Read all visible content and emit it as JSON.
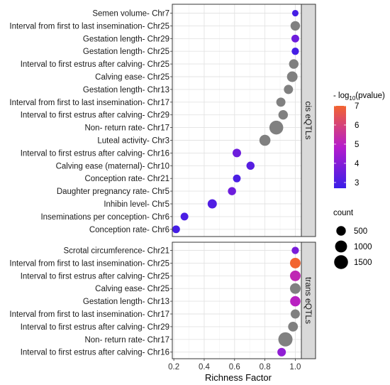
{
  "chart_data": {
    "type": "scatter",
    "xlabel": "Richness Factor",
    "xticks": [
      0.2,
      0.4,
      0.6,
      0.8,
      1.0
    ],
    "xlim": [
      0.19,
      1.04
    ],
    "grid": true,
    "panels": [
      {
        "strip": "cis eQTLs",
        "points": [
          {
            "label": "Semen volume- Chr7",
            "x": 1.0,
            "count": 120,
            "pvalue": 2.9
          },
          {
            "label": "Interval from first to last insemination- Chr25",
            "x": 1.0,
            "count": 500,
            "pvalue": null
          },
          {
            "label": "Gestation length- Chr29",
            "x": 1.0,
            "count": 250,
            "pvalue": 3.6
          },
          {
            "label": "Gestation length- Chr25",
            "x": 1.0,
            "count": 200,
            "pvalue": 2.9
          },
          {
            "label": "Interval to first estrus after calving- Chr25",
            "x": 0.99,
            "count": 500,
            "pvalue": null
          },
          {
            "label": "Calving ease- Chr25",
            "x": 0.98,
            "count": 700,
            "pvalue": null
          },
          {
            "label": "Gestation length- Chr13",
            "x": 0.955,
            "count": 450,
            "pvalue": null
          },
          {
            "label": "Interval from first to last insemination- Chr17",
            "x": 0.905,
            "count": 450,
            "pvalue": null
          },
          {
            "label": "Interval to first estrus after calving- Chr29",
            "x": 0.92,
            "count": 500,
            "pvalue": null
          },
          {
            "label": "Non- return rate- Chr17",
            "x": 0.875,
            "count": 1500,
            "pvalue": null
          },
          {
            "label": "Luteal activity- Chr3",
            "x": 0.8,
            "count": 800,
            "pvalue": null
          },
          {
            "label": "Interval to first estrus after calving- Chr16",
            "x": 0.615,
            "count": 350,
            "pvalue": 3.6
          },
          {
            "label": "Calving ease (maternal)- Chr10",
            "x": 0.705,
            "count": 300,
            "pvalue": 3.2
          },
          {
            "label": "Conception rate- Chr21",
            "x": 0.615,
            "count": 250,
            "pvalue": 3.0
          },
          {
            "label": "Daughter pregnancy rate- Chr5",
            "x": 0.583,
            "count": 300,
            "pvalue": 3.6
          },
          {
            "label": "Inhibin level- Chr5",
            "x": 0.453,
            "count": 450,
            "pvalue": 3.1
          },
          {
            "label": "Inseminations per conception- Chr6",
            "x": 0.27,
            "count": 250,
            "pvalue": 3.0
          },
          {
            "label": "Conception rate- Chr6",
            "x": 0.215,
            "count": 250,
            "pvalue": 2.9
          }
        ]
      },
      {
        "strip": "trans eQTLs",
        "points": [
          {
            "label": "Scrotal circumference- Chr21",
            "x": 1.0,
            "count": 200,
            "pvalue": 3.8
          },
          {
            "label": "Interval from first to last insemination- Chr25",
            "x": 1.0,
            "count": 700,
            "pvalue": 7.0
          },
          {
            "label": "Interval to first estrus after calving- Chr25",
            "x": 1.0,
            "count": 700,
            "pvalue": 5.2
          },
          {
            "label": "Calving ease- Chr25",
            "x": 1.0,
            "count": 700,
            "pvalue": null
          },
          {
            "label": "Gestation length- Chr13",
            "x": 1.0,
            "count": 650,
            "pvalue": 5.0
          },
          {
            "label": "Interval from first to last insemination- Chr17",
            "x": 1.0,
            "count": 450,
            "pvalue": null
          },
          {
            "label": "Interval to first estrus after calving- Chr29",
            "x": 0.985,
            "count": 550,
            "pvalue": null
          },
          {
            "label": "Non- return rate- Chr17",
            "x": 0.935,
            "count": 1600,
            "pvalue": null
          },
          {
            "label": "Interval to first estrus after calving- Chr16",
            "x": 0.91,
            "count": 350,
            "pvalue": 4.2
          }
        ]
      }
    ],
    "color_legend": {
      "title_prefix": "- log",
      "title_sub": "10",
      "title_suffix": "(pvalue)",
      "range": [
        2.7,
        7.0
      ],
      "ticks": [
        3,
        4,
        5,
        6,
        7
      ],
      "colors": [
        "#3a1ee8",
        "#b51ccc",
        "#f26430"
      ]
    },
    "size_legend": {
      "title": "count",
      "values": [
        500,
        1000,
        1500
      ]
    },
    "na_color": "#808080"
  }
}
